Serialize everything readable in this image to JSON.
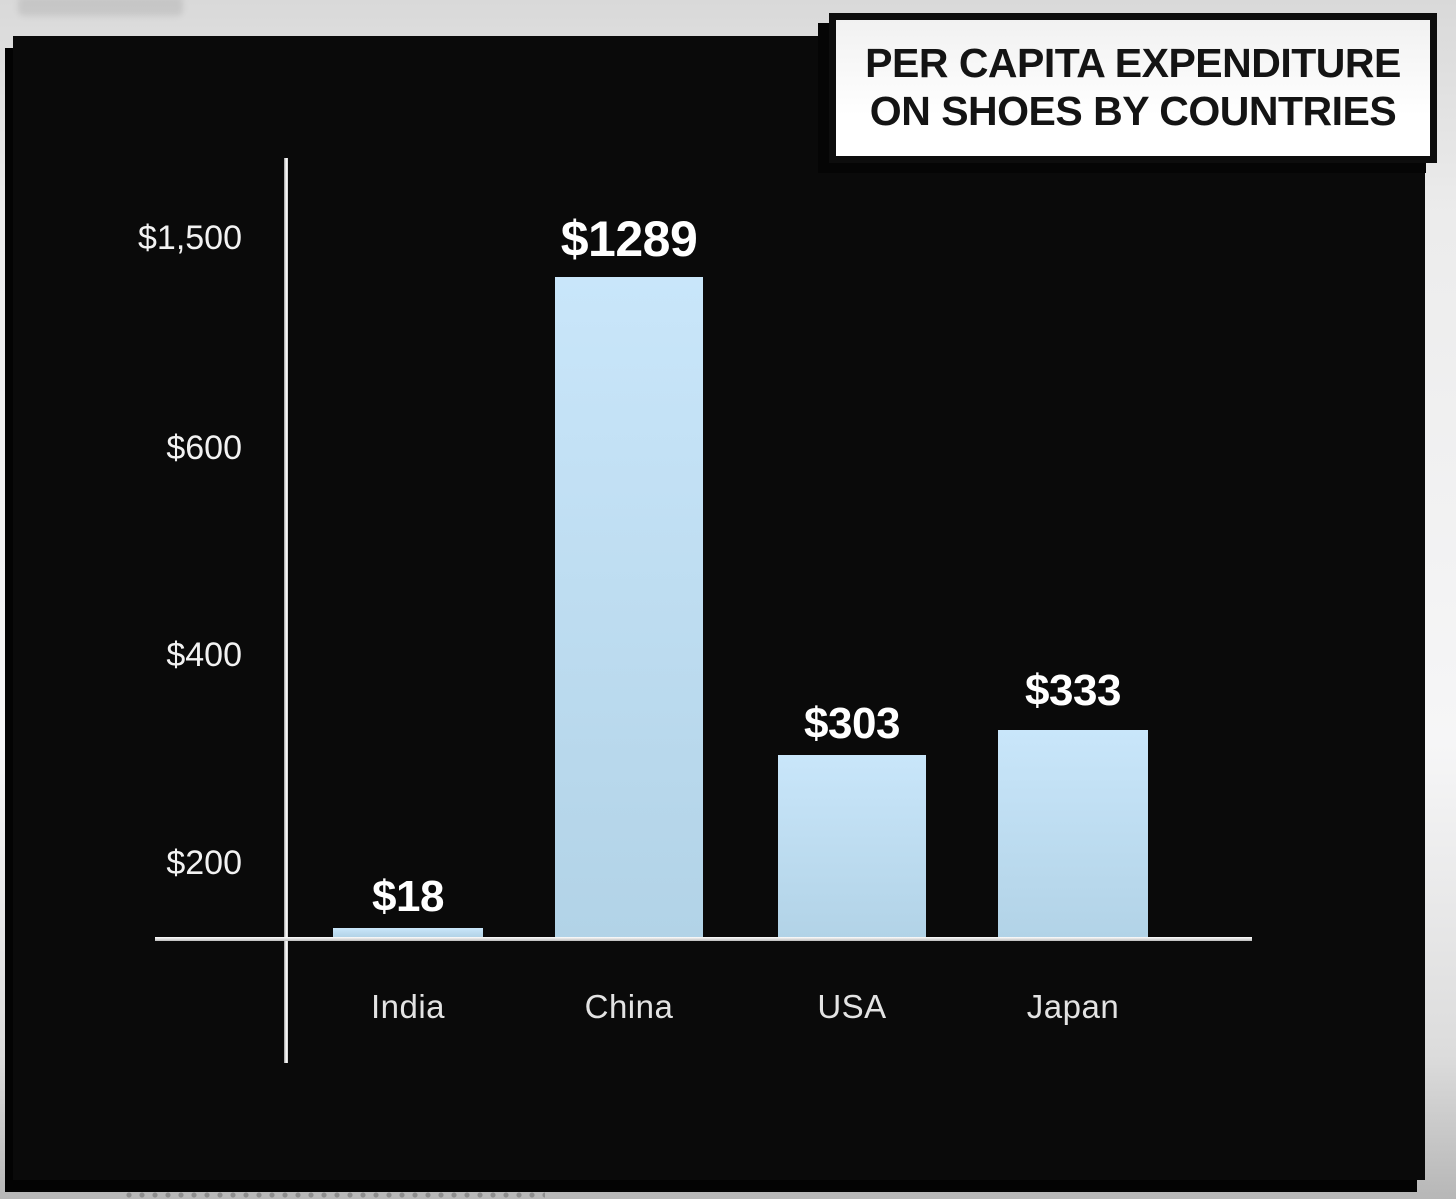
{
  "title": {
    "line1": "PER CAPITA EXPENDITURE",
    "line2": "ON SHOES BY COUNTRIES"
  },
  "chart_data": {
    "type": "bar",
    "title": "PER CAPITA EXPENDITURE ON SHOES BY COUNTRIES",
    "categories": [
      "India",
      "China",
      "USA",
      "Japan"
    ],
    "values": [
      18,
      1289,
      303,
      333
    ],
    "value_labels": [
      "$18",
      "$1289",
      "$303",
      "$333"
    ],
    "y_ticks_bottom_to_top": [
      "$200",
      "$400",
      "$600",
      "$1,500"
    ],
    "xlabel": "",
    "ylabel": "",
    "legend": "none",
    "grid": "off",
    "axis_note": "y scale is non-linear: ticks $200, $400, $600, $1,500 are evenly spaced",
    "colors": {
      "bar_top": "#c9e6fa",
      "bar_bottom": "#b2d3e7",
      "panel_background": "#0a0a0a",
      "axis_line": "#f2f2f2",
      "value_text": "#ffffff",
      "category_text": "#e3e3e3",
      "title_text": "#141414",
      "title_box_background": "#ffffff",
      "page_background": "#e9e9e9"
    }
  }
}
